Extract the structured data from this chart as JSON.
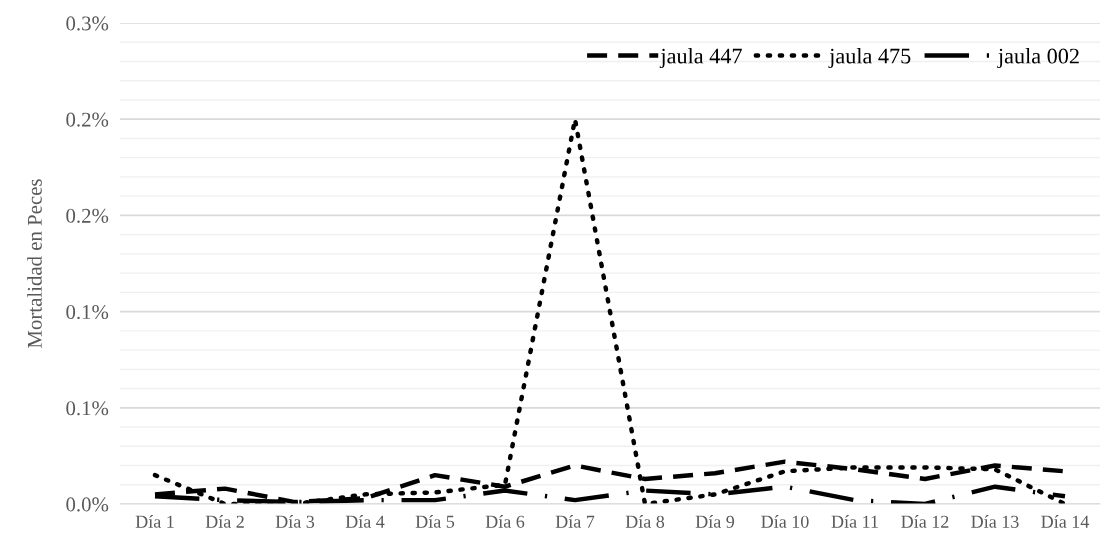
{
  "chart_data": {
    "type": "line",
    "ylabel": "Mortalidad en Peces",
    "categories": [
      "Día 1",
      "Día 2",
      "Día 3",
      "Día 4",
      "Día 5",
      "Día 6",
      "Día 7",
      "Día 8",
      "Día 9",
      "Día 10",
      "Día 11",
      "Día 12",
      "Día 13",
      "Día 14"
    ],
    "series": [
      {
        "name": "jaula 447",
        "color": "#000000",
        "line_style": "dashed",
        "values": [
          0.005,
          0.008,
          0.001,
          0.003,
          0.015,
          0.009,
          0.02,
          0.013,
          0.016,
          0.022,
          0.018,
          0.013,
          0.02,
          0.017
        ]
      },
      {
        "name": "jaula 475",
        "color": "#000000",
        "line_style": "dotted",
        "values": [
          0.015,
          0.0,
          0.0,
          0.005,
          0.006,
          0.01,
          0.2,
          0.0,
          0.005,
          0.017,
          0.019,
          0.019,
          0.018,
          0.0
        ]
      },
      {
        "name": "jaula 002",
        "color": "#000000",
        "line_style": "dashdot",
        "values": [
          0.004,
          0.002,
          0.001,
          0.002,
          0.002,
          0.007,
          0.002,
          0.007,
          0.005,
          0.009,
          0.002,
          0.0,
          0.009,
          0.004
        ]
      }
    ],
    "ylim": [
      0,
      0.25
    ],
    "yticks": [
      {
        "value": 0,
        "label": "0.0%"
      },
      {
        "value": 0.05,
        "label": "0.1%"
      },
      {
        "value": 0.1,
        "label": "0.1%"
      },
      {
        "value": 0.15,
        "label": "0.2%"
      },
      {
        "value": 0.2,
        "label": "0.2%"
      },
      {
        "value": 0.25,
        "label": "0.3%"
      }
    ],
    "grid": "y",
    "legend": "top right",
    "marker": "none"
  }
}
